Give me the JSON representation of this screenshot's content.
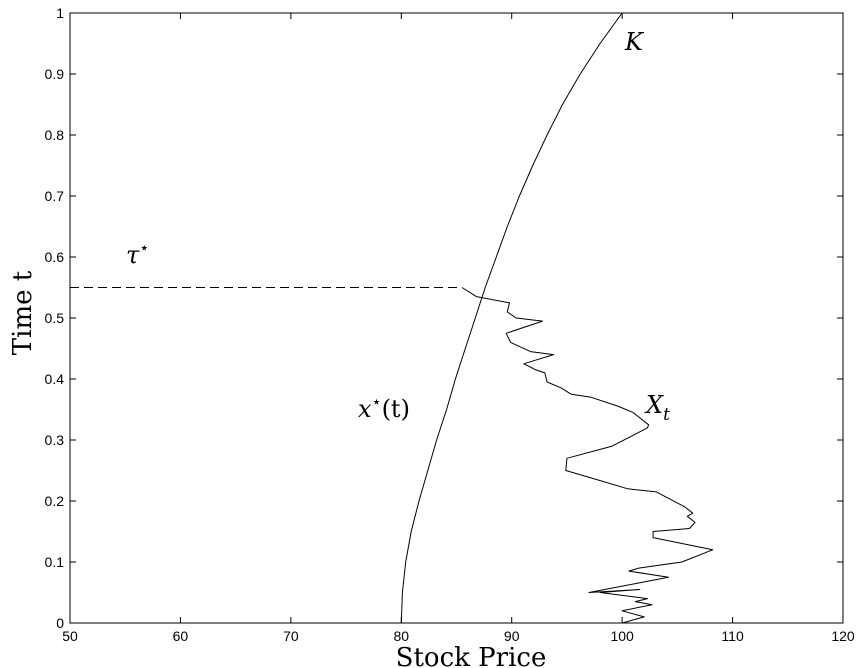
{
  "chart_data": {
    "type": "line",
    "title": "",
    "xlabel": "Stock Price",
    "ylabel": "Time t",
    "xlim": [
      50,
      120
    ],
    "ylim": [
      0,
      1
    ],
    "x_ticks": [
      50,
      60,
      70,
      80,
      90,
      100,
      110,
      120
    ],
    "y_ticks": [
      0,
      0.1,
      0.2,
      0.3,
      0.4,
      0.5,
      0.6,
      0.7,
      0.8,
      0.9,
      1
    ],
    "grid": false,
    "series": [
      {
        "name": "x*(t)",
        "style": "solid",
        "points": [
          [
            80.0,
            0.0
          ],
          [
            80.1,
            0.05
          ],
          [
            80.4,
            0.1
          ],
          [
            80.9,
            0.15
          ],
          [
            81.6,
            0.2
          ],
          [
            82.4,
            0.25
          ],
          [
            83.2,
            0.3
          ],
          [
            84.1,
            0.35
          ],
          [
            84.9,
            0.4
          ],
          [
            85.8,
            0.45
          ],
          [
            86.7,
            0.5
          ],
          [
            87.6,
            0.55
          ],
          [
            88.6,
            0.6
          ],
          [
            89.6,
            0.65
          ],
          [
            90.7,
            0.7
          ],
          [
            91.9,
            0.75
          ],
          [
            93.2,
            0.8
          ],
          [
            94.6,
            0.85
          ],
          [
            96.2,
            0.9
          ],
          [
            98.0,
            0.95
          ],
          [
            100.0,
            1.0
          ]
        ]
      },
      {
        "name": "X_t",
        "style": "solid",
        "points": [
          [
            100.0,
            0.0
          ],
          [
            102.0,
            0.01
          ],
          [
            100.0,
            0.02
          ],
          [
            102.7,
            0.03
          ],
          [
            101.2,
            0.035
          ],
          [
            102.3,
            0.04
          ],
          [
            98.0,
            0.05
          ],
          [
            101.6,
            0.055
          ],
          [
            97.0,
            0.05
          ],
          [
            101.3,
            0.065
          ],
          [
            104.2,
            0.075
          ],
          [
            100.6,
            0.085
          ],
          [
            101.5,
            0.09
          ],
          [
            105.4,
            0.1
          ],
          [
            108.2,
            0.12
          ],
          [
            102.8,
            0.14
          ],
          [
            102.8,
            0.15
          ],
          [
            106.1,
            0.155
          ],
          [
            106.6,
            0.165
          ],
          [
            105.9,
            0.175
          ],
          [
            106.4,
            0.18
          ],
          [
            105.7,
            0.19
          ],
          [
            103.1,
            0.215
          ],
          [
            100.5,
            0.22
          ],
          [
            96.8,
            0.24
          ],
          [
            94.9,
            0.25
          ],
          [
            95.0,
            0.27
          ],
          [
            99.1,
            0.29
          ],
          [
            102.3,
            0.32
          ],
          [
            102.4,
            0.325
          ],
          [
            101.0,
            0.345
          ],
          [
            99.7,
            0.355
          ],
          [
            97.2,
            0.37
          ],
          [
            95.4,
            0.375
          ],
          [
            94.5,
            0.385
          ],
          [
            93.2,
            0.395
          ],
          [
            93.0,
            0.41
          ],
          [
            92.2,
            0.415
          ],
          [
            91.1,
            0.425
          ],
          [
            92.0,
            0.43
          ],
          [
            93.8,
            0.44
          ],
          [
            91.7,
            0.445
          ],
          [
            89.9,
            0.46
          ],
          [
            89.5,
            0.475
          ],
          [
            92.8,
            0.495
          ],
          [
            90.4,
            0.5
          ],
          [
            89.6,
            0.51
          ],
          [
            89.8,
            0.525
          ],
          [
            86.8,
            0.535
          ],
          [
            85.5,
            0.55
          ]
        ]
      }
    ],
    "stopping_time": 0.55,
    "annotations": {
      "K": "K",
      "tau_star": "τ",
      "x_star_base": "x",
      "x_star_args": "(t)",
      "star": "⋆",
      "X_base": "X",
      "X_sub": "t"
    }
  }
}
